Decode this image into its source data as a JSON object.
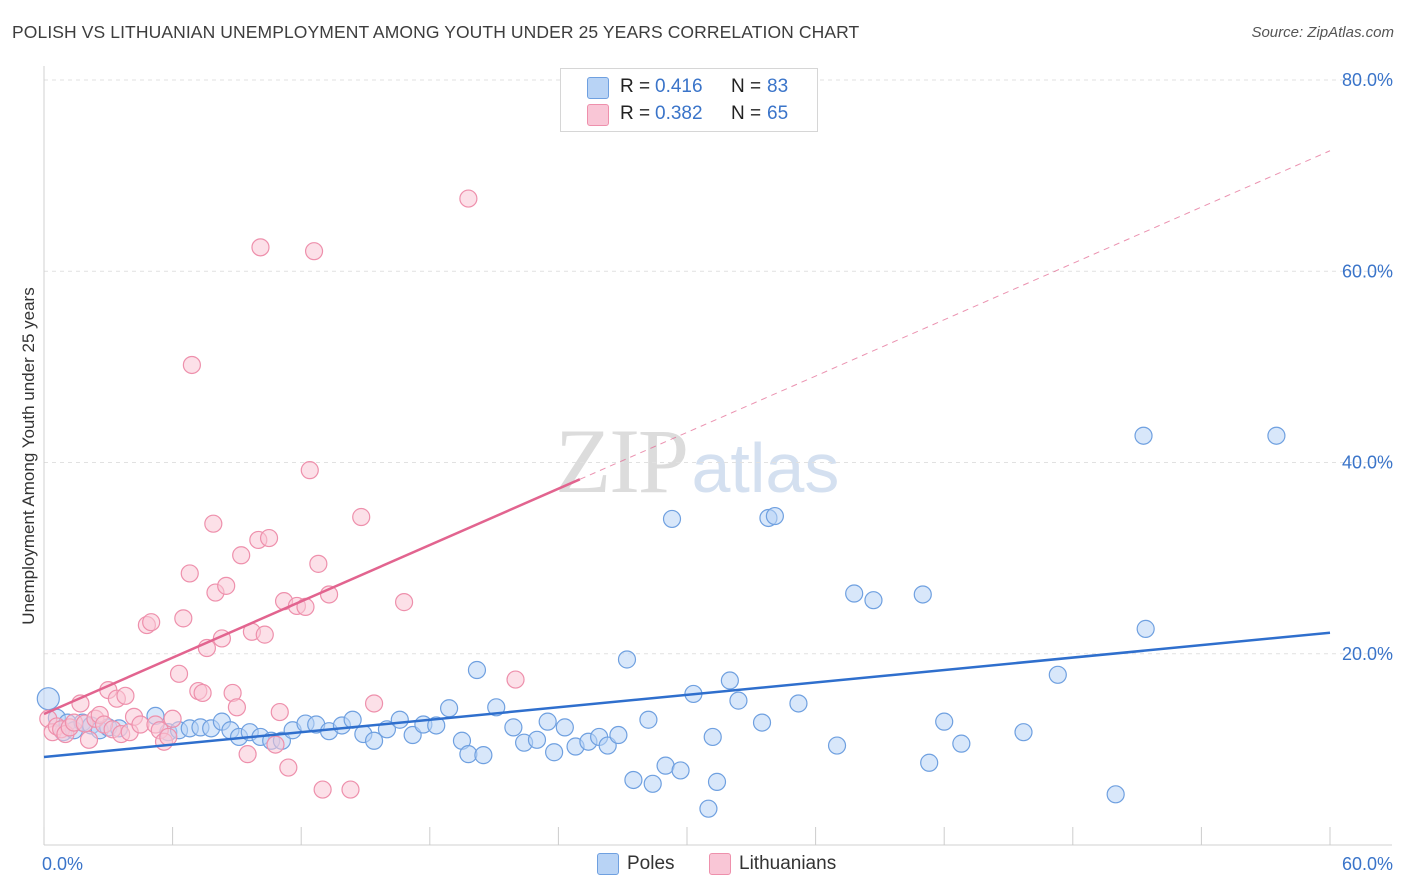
{
  "title": "POLISH VS LITHUANIAN UNEMPLOYMENT AMONG YOUTH UNDER 25 YEARS CORRELATION CHART",
  "source": "Source: ZipAtlas.com",
  "watermark": {
    "zip": "ZIP",
    "atlas": "atlas"
  },
  "legend": {
    "r_label": "R =",
    "n_label": "N =",
    "rows": [
      {
        "r": "0.416",
        "n": "83"
      },
      {
        "r": "0.382",
        "n": "65"
      }
    ]
  },
  "bottom_legend": [
    "Poles",
    "Lithuanians"
  ],
  "colors": {
    "poles_fill": "#b8d3f5",
    "poles_stroke": "#6fa0e0",
    "poles_line": "#2f6fcd",
    "lith_fill": "#f9c6d6",
    "lith_stroke": "#ee90ac",
    "lith_line": "#e2648f",
    "tick_text": "#3a74c9",
    "grid": "#e1e1e1"
  },
  "chart_data": {
    "type": "scatter",
    "ylabel": "Unemployment Among Youth under 25 years",
    "xlim": [
      0,
      60
    ],
    "ylim": [
      0,
      80
    ],
    "x_ticks": [
      "0.0%",
      "60.0%"
    ],
    "y_ticks": [
      {
        "value": 80,
        "label": "80.0%"
      },
      {
        "value": 60,
        "label": "60.0%"
      },
      {
        "value": 40,
        "label": "40.0%"
      },
      {
        "value": 20,
        "label": "20.0%"
      }
    ],
    "grid": true,
    "series": [
      {
        "name": "Poles",
        "trend": {
          "x0": 0,
          "y0": 9.2,
          "x1": 60,
          "y1": 22.2,
          "dashed_from": null
        },
        "points": [
          [
            0.2,
            15.3
          ],
          [
            0.6,
            13.3
          ],
          [
            0.9,
            11.8
          ],
          [
            1.1,
            12.8
          ],
          [
            1.4,
            12.0
          ],
          [
            1.8,
            12.8
          ],
          [
            2.2,
            12.5
          ],
          [
            2.6,
            12.0
          ],
          [
            3.0,
            12.3
          ],
          [
            3.5,
            12.2
          ],
          [
            5.2,
            13.5
          ],
          [
            5.8,
            11.8
          ],
          [
            6.3,
            12.0
          ],
          [
            6.8,
            12.2
          ],
          [
            7.3,
            12.3
          ],
          [
            7.8,
            12.2
          ],
          [
            8.3,
            12.9
          ],
          [
            8.7,
            12.0
          ],
          [
            9.1,
            11.3
          ],
          [
            9.6,
            11.8
          ],
          [
            10.1,
            11.3
          ],
          [
            10.6,
            10.9
          ],
          [
            11.1,
            10.9
          ],
          [
            11.6,
            12.0
          ],
          [
            12.2,
            12.7
          ],
          [
            12.7,
            12.6
          ],
          [
            13.3,
            11.9
          ],
          [
            13.9,
            12.5
          ],
          [
            14.4,
            13.1
          ],
          [
            14.9,
            11.6
          ],
          [
            15.4,
            10.9
          ],
          [
            16.0,
            12.1
          ],
          [
            16.6,
            13.1
          ],
          [
            17.2,
            11.5
          ],
          [
            17.7,
            12.6
          ],
          [
            18.3,
            12.5
          ],
          [
            18.9,
            14.3
          ],
          [
            19.5,
            10.9
          ],
          [
            19.8,
            9.5
          ],
          [
            20.5,
            9.4
          ],
          [
            20.2,
            18.3
          ],
          [
            21.1,
            14.4
          ],
          [
            21.9,
            12.3
          ],
          [
            22.4,
            10.7
          ],
          [
            23.0,
            11.0
          ],
          [
            23.5,
            12.9
          ],
          [
            23.8,
            9.7
          ],
          [
            24.3,
            12.3
          ],
          [
            24.8,
            10.3
          ],
          [
            25.4,
            10.8
          ],
          [
            25.9,
            11.3
          ],
          [
            26.3,
            10.4
          ],
          [
            26.8,
            11.5
          ],
          [
            27.2,
            19.4
          ],
          [
            27.5,
            6.8
          ],
          [
            28.2,
            13.1
          ],
          [
            28.4,
            6.4
          ],
          [
            29.0,
            8.3
          ],
          [
            29.7,
            7.8
          ],
          [
            29.3,
            34.1
          ],
          [
            30.3,
            15.8
          ],
          [
            31.0,
            3.8
          ],
          [
            31.2,
            11.3
          ],
          [
            31.4,
            6.6
          ],
          [
            32.0,
            17.2
          ],
          [
            32.4,
            15.1
          ],
          [
            33.5,
            12.8
          ],
          [
            33.8,
            34.2
          ],
          [
            34.1,
            34.4
          ],
          [
            35.2,
            14.8
          ],
          [
            37.0,
            10.4
          ],
          [
            37.8,
            26.3
          ],
          [
            38.7,
            25.6
          ],
          [
            41.0,
            26.2
          ],
          [
            41.3,
            8.6
          ],
          [
            42.0,
            12.9
          ],
          [
            42.8,
            10.6
          ],
          [
            45.7,
            11.8
          ],
          [
            47.3,
            17.8
          ],
          [
            50.0,
            5.3
          ],
          [
            51.4,
            22.6
          ],
          [
            51.3,
            42.8
          ],
          [
            57.5,
            42.8
          ]
        ]
      },
      {
        "name": "Lithuanians",
        "trend": {
          "x0": 0,
          "y0": 13.7,
          "x1": 60,
          "y1": 72.6,
          "dashed_from": 25.0
        },
        "points": [
          [
            0.2,
            13.2
          ],
          [
            0.4,
            11.8
          ],
          [
            0.6,
            12.4
          ],
          [
            0.8,
            12.1
          ],
          [
            1.0,
            11.6
          ],
          [
            1.2,
            12.3
          ],
          [
            1.4,
            12.8
          ],
          [
            1.7,
            14.8
          ],
          [
            1.9,
            12.7
          ],
          [
            2.1,
            11.0
          ],
          [
            2.4,
            13.2
          ],
          [
            2.6,
            13.6
          ],
          [
            2.8,
            12.6
          ],
          [
            3.0,
            16.2
          ],
          [
            3.2,
            12.1
          ],
          [
            3.4,
            15.3
          ],
          [
            3.6,
            11.6
          ],
          [
            3.8,
            15.6
          ],
          [
            4.0,
            11.8
          ],
          [
            4.2,
            13.4
          ],
          [
            4.5,
            12.6
          ],
          [
            4.8,
            23.0
          ],
          [
            5.0,
            23.3
          ],
          [
            5.2,
            12.6
          ],
          [
            5.4,
            12.0
          ],
          [
            5.6,
            10.8
          ],
          [
            5.8,
            11.3
          ],
          [
            6.0,
            13.2
          ],
          [
            6.3,
            17.9
          ],
          [
            6.5,
            23.7
          ],
          [
            6.8,
            28.4
          ],
          [
            6.9,
            50.2
          ],
          [
            7.2,
            16.1
          ],
          [
            7.4,
            15.9
          ],
          [
            7.6,
            20.6
          ],
          [
            7.9,
            33.6
          ],
          [
            8.0,
            26.4
          ],
          [
            8.3,
            21.6
          ],
          [
            8.5,
            27.1
          ],
          [
            8.8,
            15.9
          ],
          [
            9.0,
            14.4
          ],
          [
            9.2,
            30.3
          ],
          [
            9.5,
            9.5
          ],
          [
            9.7,
            22.3
          ],
          [
            10.0,
            31.9
          ],
          [
            10.1,
            62.5
          ],
          [
            10.3,
            22.0
          ],
          [
            10.5,
            32.1
          ],
          [
            10.8,
            10.5
          ],
          [
            11.0,
            13.9
          ],
          [
            11.2,
            25.5
          ],
          [
            11.4,
            8.1
          ],
          [
            11.8,
            25.0
          ],
          [
            12.2,
            24.9
          ],
          [
            12.4,
            39.2
          ],
          [
            12.6,
            62.1
          ],
          [
            12.8,
            29.4
          ],
          [
            13.0,
            5.8
          ],
          [
            13.3,
            26.2
          ],
          [
            14.3,
            5.8
          ],
          [
            14.8,
            34.3
          ],
          [
            15.4,
            14.8
          ],
          [
            16.8,
            25.4
          ],
          [
            19.8,
            67.6
          ],
          [
            22.0,
            17.3
          ]
        ]
      }
    ]
  }
}
